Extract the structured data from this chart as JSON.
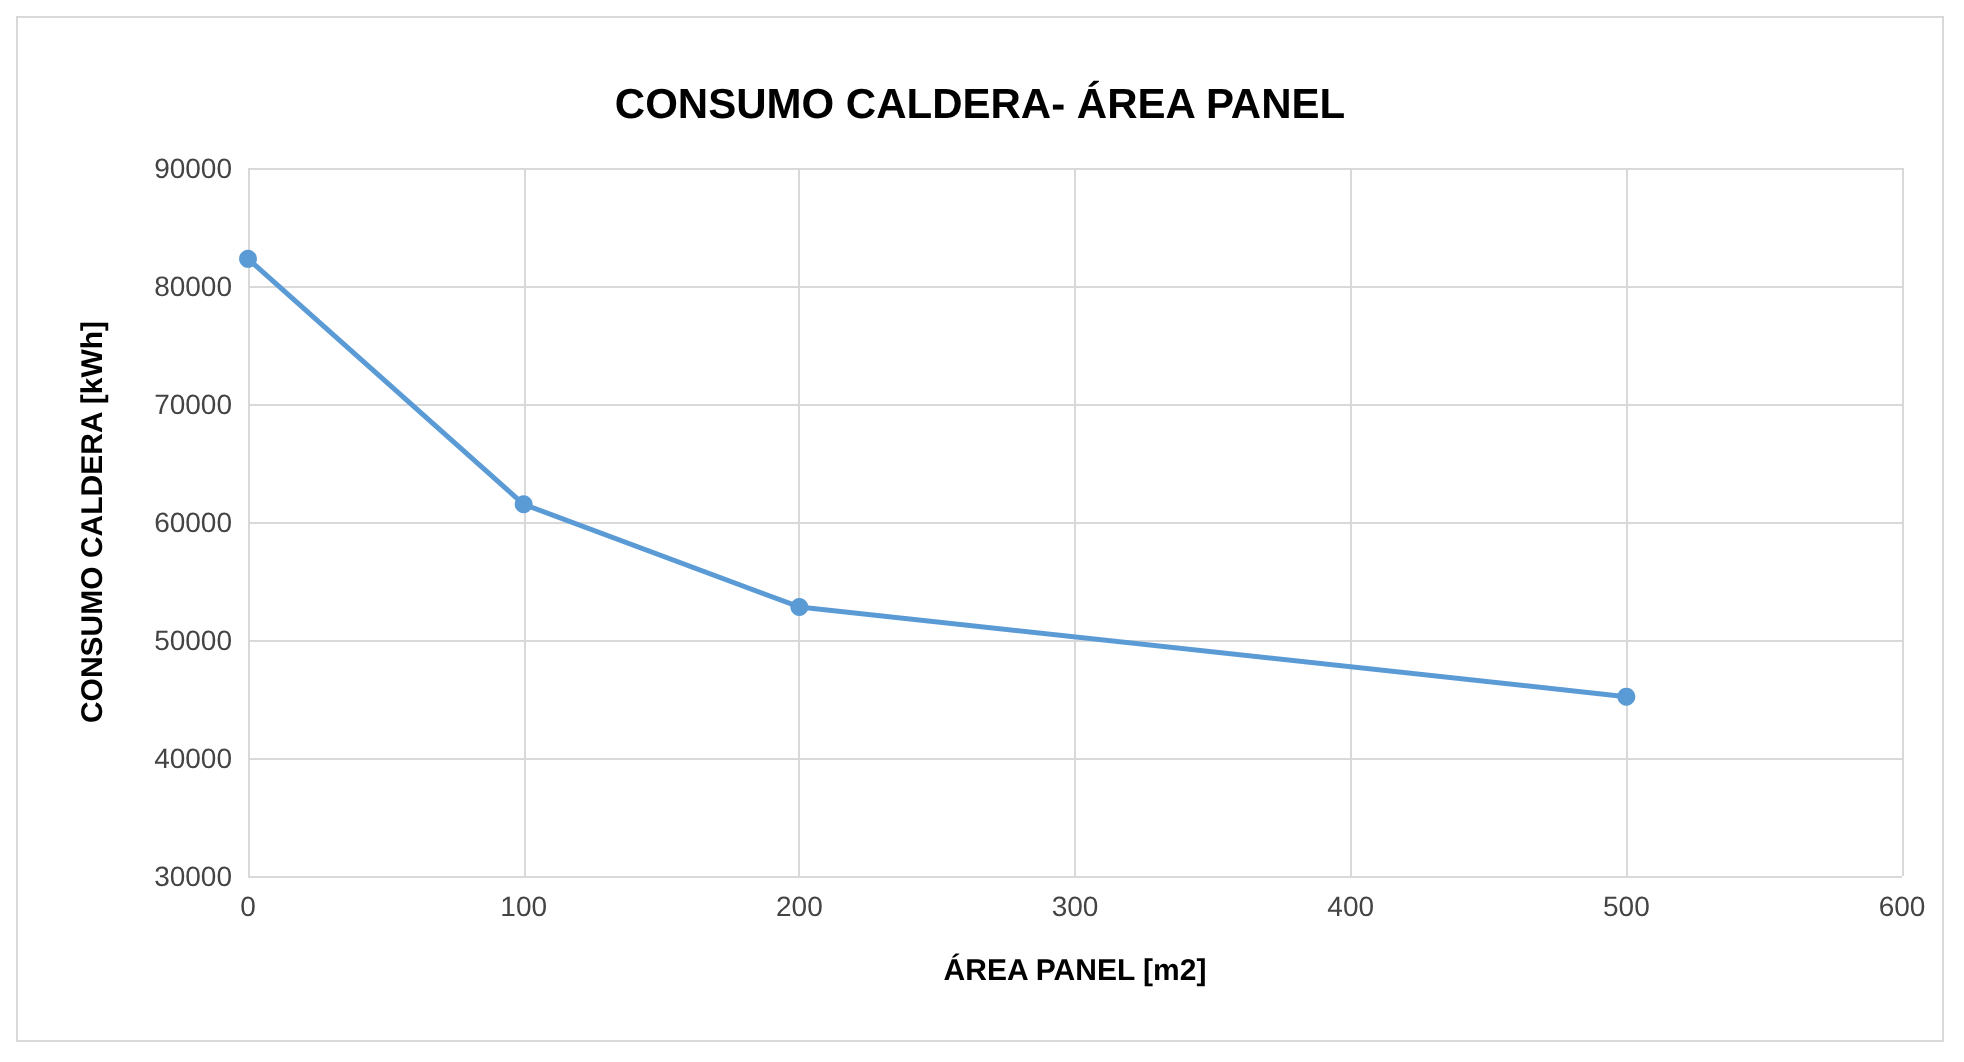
{
  "chart_data": {
    "type": "line",
    "title": "CONSUMO CALDERA- ÁREA PANEL",
    "xlabel": "ÁREA PANEL [m2]",
    "ylabel": "CONSUMO CALDERA [kWh]",
    "x": [
      0,
      100,
      200,
      500
    ],
    "series": [
      {
        "color": "#5b9bd5",
        "values": [
          82300,
          61500,
          52800,
          45200
        ]
      }
    ],
    "xlim": [
      0,
      600
    ],
    "xticks": [
      0,
      100,
      200,
      300,
      400,
      500,
      600
    ],
    "ylim": [
      30000,
      90000
    ],
    "yticks": [
      30000,
      40000,
      50000,
      60000,
      70000,
      80000,
      90000
    ],
    "grid": true,
    "marker": "circle",
    "line_style": "solid"
  }
}
